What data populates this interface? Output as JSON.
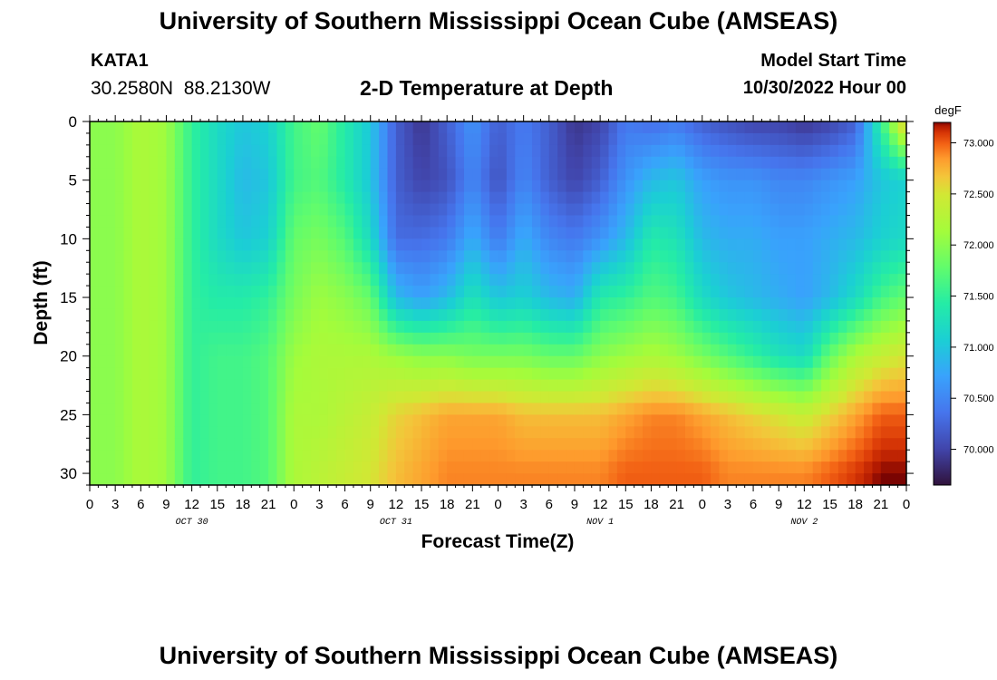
{
  "page": {
    "title": "University of Southern Mississippi Ocean Cube (AMSEAS)",
    "title_repeat": "University of Southern Mississippi Ocean Cube (AMSEAS)",
    "station": "KATA1",
    "coords": "30.2580N  88.2130W",
    "subtitle": "2-D Temperature at Depth",
    "start_label": "Model Start Time",
    "start_value": "10/30/2022 Hour 00"
  },
  "chart_data": {
    "type": "heatmap",
    "title": "2-D Temperature at Depth",
    "xlabel": "Forecast Time(Z)",
    "ylabel": "Depth (ft)",
    "x_range_hours": [
      0,
      96
    ],
    "ylim": [
      0,
      31
    ],
    "y_inverted": true,
    "x_tick_labels": [
      "0",
      "3",
      "6",
      "9",
      "12",
      "15",
      "18",
      "21",
      "0",
      "3",
      "6",
      "9",
      "12",
      "15",
      "18",
      "21",
      "0",
      "3",
      "6",
      "9",
      "12",
      "15",
      "18",
      "21",
      "0",
      "3",
      "6",
      "9",
      "12",
      "15",
      "18",
      "21",
      "0"
    ],
    "y_ticks": [
      0,
      5,
      10,
      15,
      20,
      25,
      30
    ],
    "day_labels": [
      {
        "label": "OCT 30",
        "hour": 12
      },
      {
        "label": "OCT 31",
        "hour": 36
      },
      {
        "label": "NOV 1",
        "hour": 60
      },
      {
        "label": "NOV 2",
        "hour": 84
      }
    ],
    "colorbar": {
      "units": "degF",
      "range": [
        69.65,
        73.2
      ],
      "tick_values": [
        70.0,
        70.5,
        71.0,
        71.5,
        72.0,
        72.5,
        73.0
      ],
      "tick_labels": [
        "70.000",
        "70.500",
        "71.000",
        "71.500",
        "72.000",
        "72.500",
        "73.000"
      ]
    },
    "columns_hour": [
      0,
      3,
      6,
      9,
      12,
      15,
      18,
      21,
      24,
      27,
      30,
      33,
      36,
      39,
      42,
      45,
      48,
      51,
      54,
      57,
      60,
      63,
      66,
      69,
      72,
      75,
      78,
      81,
      84,
      87,
      90,
      93,
      96
    ],
    "rows_depth_ft": [
      0,
      5,
      10,
      15,
      20,
      25,
      30
    ],
    "values_degF": [
      [
        72.0,
        72.0,
        72.0,
        72.0,
        72.0,
        72.0,
        72.0
      ],
      [
        72.0,
        72.0,
        72.0,
        72.0,
        72.0,
        72.0,
        72.0
      ],
      [
        72.2,
        72.2,
        72.2,
        72.2,
        72.2,
        72.2,
        72.2
      ],
      [
        72.1,
        72.1,
        72.1,
        72.1,
        72.1,
        72.1,
        72.1
      ],
      [
        71.5,
        71.5,
        71.5,
        71.5,
        71.5,
        71.5,
        71.5
      ],
      [
        71.2,
        71.2,
        71.2,
        71.4,
        71.6,
        71.6,
        71.6
      ],
      [
        71.0,
        70.9,
        71.0,
        71.4,
        71.6,
        71.6,
        71.6
      ],
      [
        71.1,
        71.0,
        71.1,
        71.5,
        71.7,
        71.7,
        71.7
      ],
      [
        71.6,
        71.6,
        71.8,
        71.9,
        72.1,
        72.2,
        72.2
      ],
      [
        71.8,
        71.7,
        71.9,
        72.1,
        72.2,
        72.2,
        72.3
      ],
      [
        71.4,
        71.4,
        71.7,
        72.0,
        72.2,
        72.3,
        72.4
      ],
      [
        71.0,
        71.0,
        71.2,
        71.8,
        72.2,
        72.4,
        72.5
      ],
      [
        70.2,
        70.2,
        70.3,
        70.9,
        72.1,
        72.6,
        72.7
      ],
      [
        69.9,
        70.0,
        70.3,
        70.7,
        72.0,
        72.7,
        72.8
      ],
      [
        70.2,
        70.1,
        70.4,
        70.9,
        72.0,
        72.8,
        72.9
      ],
      [
        70.6,
        70.5,
        70.8,
        71.3,
        71.9,
        72.8,
        72.9
      ],
      [
        70.2,
        70.1,
        70.4,
        71.0,
        71.9,
        72.8,
        72.9
      ],
      [
        70.4,
        70.5,
        70.8,
        71.1,
        71.9,
        72.7,
        72.9
      ],
      [
        70.2,
        70.2,
        70.5,
        70.9,
        71.8,
        72.7,
        72.9
      ],
      [
        69.9,
        70.0,
        70.4,
        70.8,
        71.8,
        72.7,
        72.9
      ],
      [
        70.0,
        70.2,
        70.6,
        71.4,
        72.0,
        72.7,
        72.9
      ],
      [
        70.4,
        70.6,
        70.9,
        71.5,
        72.1,
        72.8,
        73.0
      ],
      [
        70.3,
        70.9,
        71.4,
        71.7,
        72.2,
        72.9,
        73.0
      ],
      [
        70.4,
        71.0,
        71.3,
        71.6,
        72.1,
        72.9,
        73.0
      ],
      [
        70.2,
        70.7,
        70.9,
        71.2,
        71.9,
        72.8,
        73.0
      ],
      [
        70.1,
        70.6,
        70.8,
        71.0,
        71.7,
        72.7,
        72.9
      ],
      [
        70.0,
        70.6,
        70.8,
        70.9,
        71.5,
        72.6,
        72.9
      ],
      [
        70.0,
        70.5,
        70.7,
        70.8,
        71.3,
        72.5,
        72.9
      ],
      [
        69.9,
        70.5,
        70.7,
        70.7,
        71.2,
        72.4,
        72.9
      ],
      [
        70.0,
        70.6,
        70.8,
        70.9,
        71.8,
        72.6,
        73.0
      ],
      [
        70.2,
        70.7,
        70.9,
        71.2,
        72.2,
        72.8,
        73.1
      ],
      [
        71.5,
        71.0,
        71.1,
        71.6,
        72.4,
        73.0,
        73.2
      ],
      [
        72.8,
        71.1,
        71.2,
        71.8,
        72.5,
        73.0,
        73.2
      ]
    ]
  }
}
